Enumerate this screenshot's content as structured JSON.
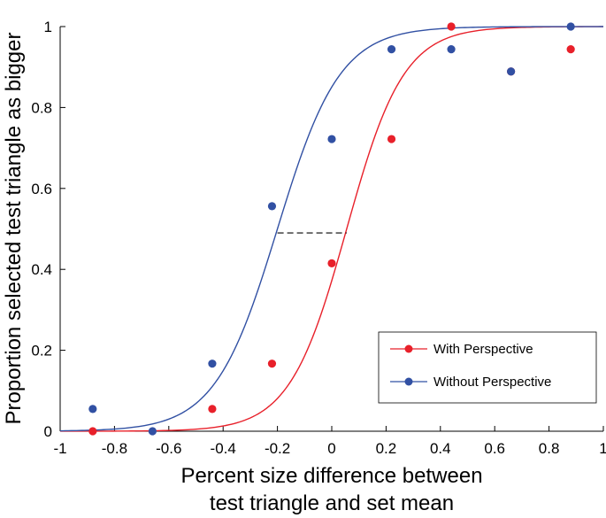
{
  "chart_data": {
    "type": "scatter",
    "title": "",
    "xlabel_lines": [
      "Percent size difference between",
      "test triangle and set mean"
    ],
    "ylabel": "Proportion selected test triangle as bigger",
    "xlim": [
      -1,
      1
    ],
    "ylim": [
      0,
      1
    ],
    "x_ticks": [
      "-1",
      "-0.8",
      "-0.6",
      "-0.4",
      "-0.2",
      "0",
      "0.2",
      "0.4",
      "0.6",
      "0.8",
      "1"
    ],
    "x_tick_values": [
      -1,
      -0.8,
      -0.6,
      -0.4,
      -0.2,
      0,
      0.2,
      0.4,
      0.6,
      0.8,
      1
    ],
    "y_ticks": [
      "0",
      "0.2",
      "0.4",
      "0.6",
      "0.8",
      "1"
    ],
    "y_tick_values": [
      0,
      0.2,
      0.4,
      0.6,
      0.8,
      1
    ],
    "grid": false,
    "legend_position": "bottom-right",
    "series": [
      {
        "name": "With Perspective",
        "color": "#e8202a",
        "points": [
          {
            "x": -0.88,
            "y": 0.0
          },
          {
            "x": -0.44,
            "y": 0.055
          },
          {
            "x": -0.22,
            "y": 0.167
          },
          {
            "x": 0.0,
            "y": 0.415
          },
          {
            "x": 0.22,
            "y": 0.722
          },
          {
            "x": 0.44,
            "y": 1.0
          },
          {
            "x": 0.66,
            "y": 0.889
          },
          {
            "x": 0.88,
            "y": 0.944
          }
        ],
        "fit": {
          "model": "logistic",
          "mu": 0.055,
          "s": 0.105
        }
      },
      {
        "name": "Without Perspective",
        "color": "#3150a3",
        "points": [
          {
            "x": -0.88,
            "y": 0.055
          },
          {
            "x": -0.66,
            "y": 0.0
          },
          {
            "x": -0.44,
            "y": 0.167
          },
          {
            "x": -0.22,
            "y": 0.556
          },
          {
            "x": 0.0,
            "y": 0.722
          },
          {
            "x": 0.22,
            "y": 0.944
          },
          {
            "x": 0.44,
            "y": 0.944
          },
          {
            "x": 0.66,
            "y": 0.889
          },
          {
            "x": 0.88,
            "y": 1.0
          }
        ],
        "fit": {
          "model": "logistic",
          "mu": -0.2,
          "s": 0.115
        }
      }
    ],
    "annotation": {
      "type": "dashed-line",
      "y": 0.49,
      "x_from": -0.2,
      "x_to": 0.055,
      "color": "#000000"
    }
  }
}
